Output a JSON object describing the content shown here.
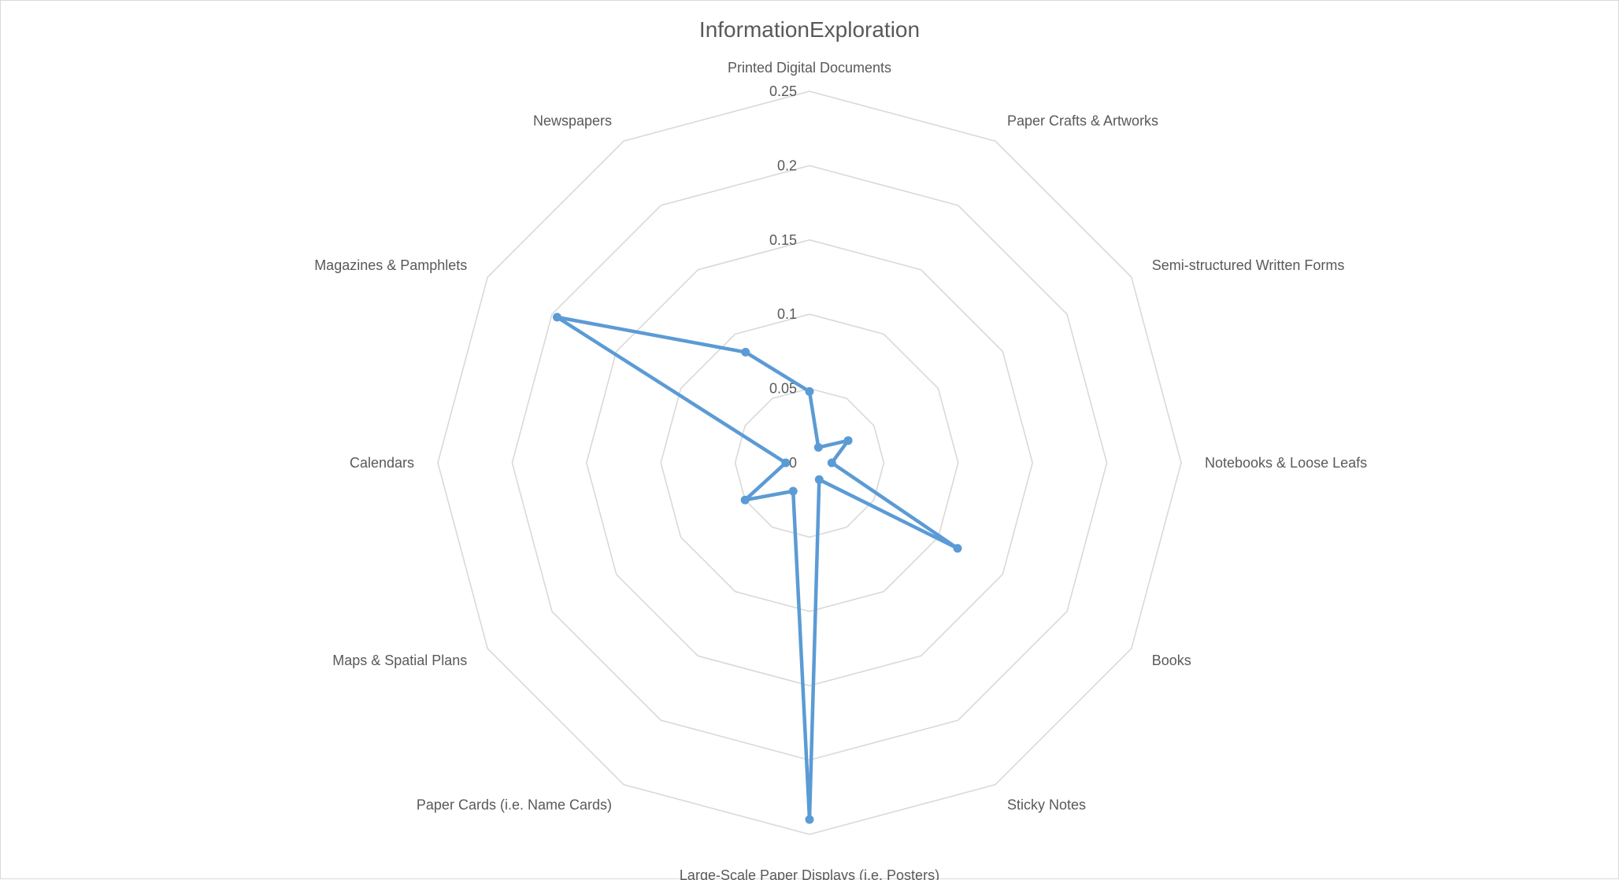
{
  "chart_data": {
    "type": "radar",
    "title": "InformationExploration",
    "categories": [
      "Printed Digital Documents",
      "Paper Crafts & Artworks",
      "Semi-structured Written Forms",
      "Notebooks & Loose Leafs",
      "Books",
      "Sticky Notes",
      "Large-Scale Paper Displays (i.e. Posters)",
      "Paper Cards (i.e. Name Cards)",
      "Maps & Spatial Plans",
      "Calendars",
      "Magazines & Pamphlets",
      "Newspapers"
    ],
    "series": [
      {
        "values": [
          0.048,
          0.012,
          0.03,
          0.015,
          0.115,
          0.013,
          0.24,
          0.022,
          0.05,
          0.016,
          0.196,
          0.086
        ],
        "color": "#5b9bd5"
      }
    ],
    "rlim": [
      0,
      0.25
    ],
    "ticks": [
      0,
      0.05,
      0.1,
      0.15,
      0.2,
      0.25
    ],
    "tick_labels": [
      "0",
      "0.05",
      "0.1",
      "0.15",
      "0.2",
      "0.25"
    ],
    "grid": true,
    "legend": "none"
  }
}
